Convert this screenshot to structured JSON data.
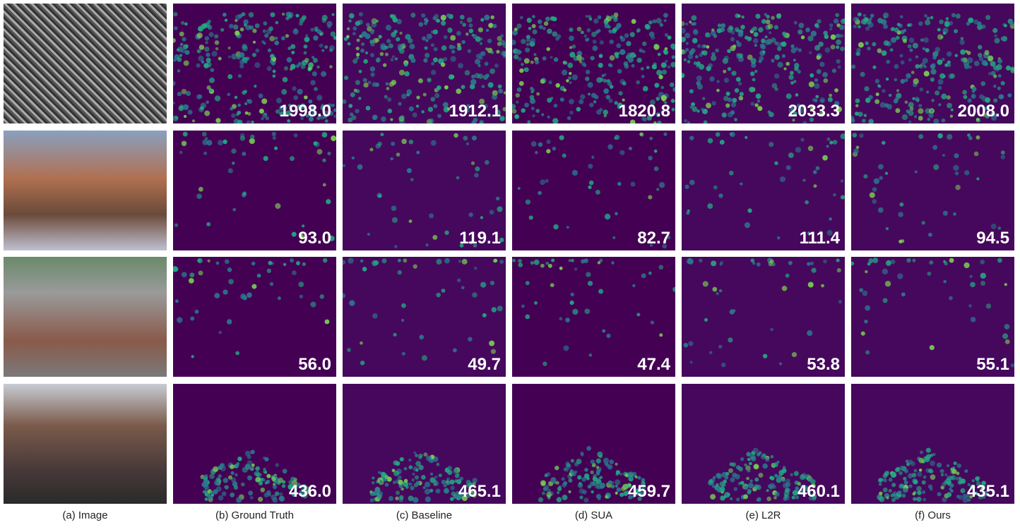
{
  "columns": [
    "(a) Image",
    "(b) Ground Truth",
    "(c) Baseline",
    "(d) SUA",
    "(e) L2R",
    "(f) Ours"
  ],
  "rows": [
    {
      "counts": [
        "1998.0",
        "1912.1",
        "1820.8",
        "2033.3",
        "2008.0"
      ]
    },
    {
      "counts": [
        "93.0",
        "119.1",
        "82.7",
        "111.4",
        "94.5"
      ]
    },
    {
      "counts": [
        "56.0",
        "49.7",
        "47.4",
        "53.8",
        "55.1"
      ]
    },
    {
      "counts": [
        "436.0",
        "465.1",
        "459.7",
        "460.1",
        "435.1"
      ]
    }
  ]
}
